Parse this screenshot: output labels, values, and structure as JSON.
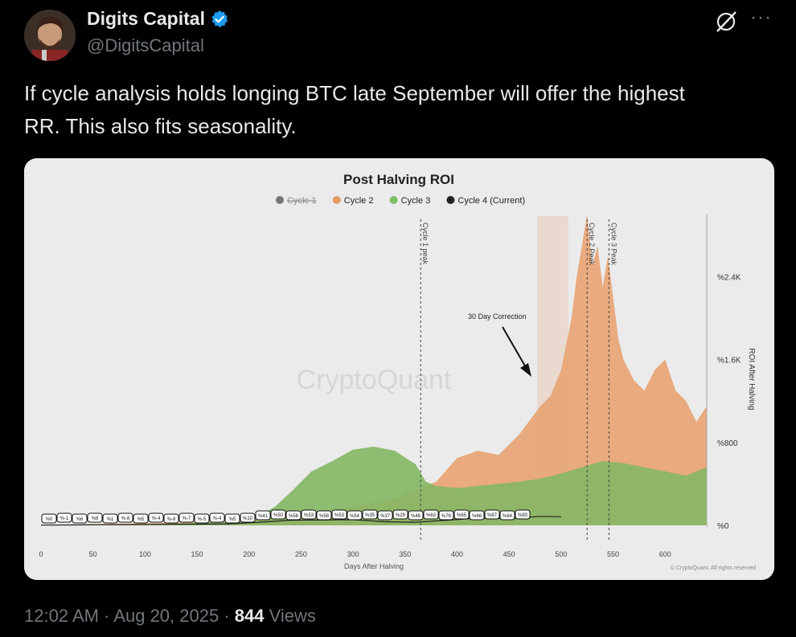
{
  "author": {
    "name": "Digits Capital",
    "handle": "@DigitsCapital",
    "avatar_icon": "avatar-illustration"
  },
  "tweet": {
    "text_line1": "If cycle analysis holds longing BTC late September will offer the highest",
    "text_line2": "RR. This also fits seasonality."
  },
  "meta": {
    "time": "12:02 AM",
    "date": "Aug 20, 2025",
    "views_count": "844",
    "views_label": "Views"
  },
  "chart_data": {
    "type": "area",
    "title": "Post Halving ROI",
    "xlabel": "Days After Halving",
    "ylabel": "ROI After Halving",
    "x_ticks": [
      0,
      50,
      100,
      150,
      200,
      250,
      300,
      350,
      400,
      450,
      500,
      550,
      600
    ],
    "xlim": [
      0,
      640
    ],
    "y_ticks": [
      "%0",
      "%800",
      "%1.6K",
      "%2.4K"
    ],
    "ylim": [
      0,
      3000
    ],
    "legend": [
      {
        "name": "Cycle 1",
        "color": "#777777",
        "struck": true
      },
      {
        "name": "Cycle 2",
        "color": "#e79b67"
      },
      {
        "name": "Cycle 3",
        "color": "#7bbf66"
      },
      {
        "name": "Cycle 4 (Current)",
        "color": "#222222"
      }
    ],
    "watermark": "CryptoQuant",
    "copyright": "© CryptoQuant. All rights reserved",
    "annotations": {
      "cycle1_peak": {
        "label": "Cycle 1 peak",
        "x": 365
      },
      "cycle2_peak": {
        "label": "Cycle 2 Peak",
        "x": 525
      },
      "cycle3_peak": {
        "label": "Cycle 3 Peak",
        "x": 546
      },
      "correction": {
        "label": "30 Day Correction",
        "x_start": 477,
        "x_end": 507
      }
    },
    "series": [
      {
        "name": "Cycle 2",
        "color": "#e79b67",
        "x": [
          0,
          100,
          200,
          230,
          260,
          300,
          340,
          380,
          400,
          420,
          440,
          460,
          480,
          490,
          500,
          510,
          515,
          520,
          525,
          530,
          535,
          540,
          545,
          550,
          555,
          560,
          570,
          580,
          590,
          600,
          610,
          620,
          630,
          640
        ],
        "y": [
          5,
          20,
          40,
          80,
          120,
          180,
          260,
          420,
          650,
          720,
          680,
          880,
          1150,
          1250,
          1500,
          2000,
          2400,
          2700,
          3000,
          2500,
          2700,
          2300,
          2600,
          2200,
          1800,
          1600,
          1400,
          1300,
          1500,
          1600,
          1300,
          1200,
          1000,
          1150
        ]
      },
      {
        "name": "Cycle 3",
        "color": "#7bbf66",
        "x": [
          0,
          100,
          200,
          225,
          240,
          260,
          280,
          300,
          320,
          340,
          360,
          370,
          380,
          400,
          420,
          440,
          460,
          480,
          500,
          520,
          540,
          560,
          580,
          600,
          620,
          640
        ],
        "y": [
          5,
          10,
          40,
          180,
          320,
          520,
          620,
          730,
          760,
          720,
          590,
          420,
          380,
          360,
          380,
          400,
          420,
          450,
          500,
          560,
          620,
          600,
          560,
          520,
          480,
          560
        ]
      },
      {
        "name": "Cycle 4 (Current)",
        "color": "#222222",
        "x": [
          0,
          30,
          60,
          90,
          120,
          150,
          180,
          210,
          240,
          270,
          300,
          330,
          360,
          390,
          420,
          450,
          480,
          500
        ],
        "y": [
          2,
          4,
          6,
          8,
          10,
          12,
          15,
          30,
          50,
          52,
          55,
          35,
          30,
          50,
          70,
          65,
          87,
          83
        ]
      }
    ],
    "value_labels": [
      "%0",
      "%-1",
      "%6",
      "%8",
      "%1",
      "%-8",
      "%5",
      "%-4",
      "%-8",
      "%-7",
      "%-5",
      "%-4",
      "%5",
      "%10",
      "%41",
      "%50",
      "%56",
      "%53",
      "%58",
      "%53",
      "%54",
      "%35",
      "%37",
      "%29",
      "%48",
      "%63",
      "%76",
      "%65",
      "%66",
      "%87",
      "%84",
      "%83"
    ]
  }
}
